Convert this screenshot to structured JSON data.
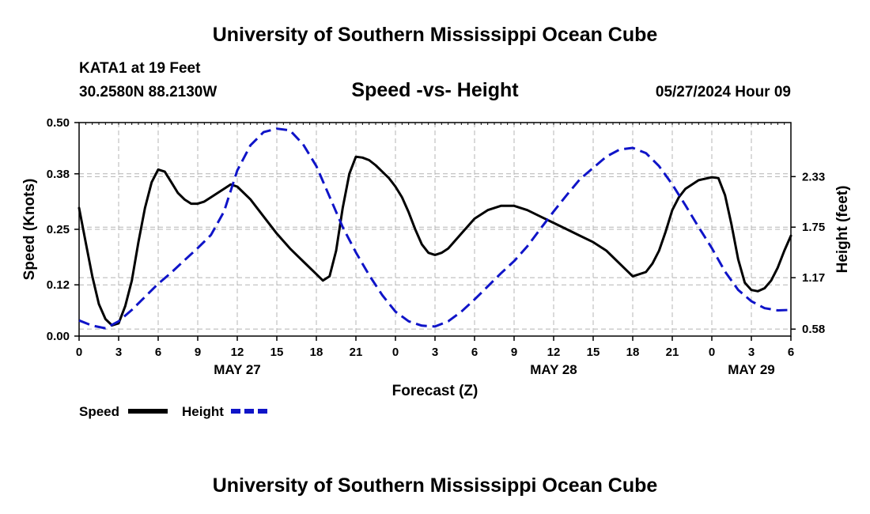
{
  "header": {
    "title": "University of Southern Mississippi Ocean Cube",
    "station": "KATA1 at 19 Feet",
    "coordinates": "30.2580N  88.2130W",
    "chart_title": "Speed -vs- Height",
    "forecast_time": "05/27/2024 Hour 09"
  },
  "footer": {
    "title": "University of Southern Mississippi Ocean Cube"
  },
  "chart_data": {
    "type": "line",
    "title": "Speed -vs- Height",
    "xlabel": "Forecast (Z)",
    "ylabel": "Speed (Knots)",
    "y2label": "Height (feet)",
    "xlim": [
      0,
      54
    ],
    "ylim": [
      0,
      0.5
    ],
    "y2lim": [
      0.5,
      2.95
    ],
    "x_ticks": [
      0,
      3,
      6,
      9,
      12,
      15,
      18,
      21,
      24,
      27,
      30,
      33,
      36,
      39,
      42,
      45,
      48,
      51,
      54
    ],
    "x_tick_labels": [
      "0",
      "3",
      "6",
      "9",
      "12",
      "15",
      "18",
      "21",
      "0",
      "3",
      "6",
      "9",
      "12",
      "15",
      "18",
      "21",
      "0",
      "3",
      "6"
    ],
    "date_labels": [
      {
        "x": 12,
        "label": "MAY 27"
      },
      {
        "x": 36,
        "label": "MAY 28"
      },
      {
        "x": 51,
        "label": "MAY 29"
      }
    ],
    "y_ticks": [
      0.0,
      0.12,
      0.25,
      0.38,
      0.5
    ],
    "y_tick_labels": [
      "0.00",
      "0.12",
      "0.25",
      "0.38",
      "0.50"
    ],
    "y2_ticks": [
      0.58,
      1.17,
      1.75,
      2.33
    ],
    "y2_tick_labels": [
      "0.58",
      "1.17",
      "1.75",
      "2.33"
    ],
    "grid": true,
    "legend_position": "bottom-left",
    "series": [
      {
        "name": "Speed",
        "axis": "left",
        "color": "#000000",
        "style": "solid",
        "x": [
          0,
          0.5,
          1,
          1.5,
          2,
          2.5,
          3,
          3.5,
          4,
          4.5,
          5,
          5.5,
          6,
          6.5,
          7,
          7.5,
          8,
          8.5,
          9,
          9.5,
          10,
          10.5,
          11,
          11.5,
          12,
          13,
          14,
          15,
          16,
          17,
          18,
          18.5,
          19,
          19.5,
          20,
          20.5,
          21,
          21.5,
          22,
          22.5,
          23,
          23.5,
          24,
          24.5,
          25,
          25.5,
          26,
          26.5,
          27,
          27.5,
          28,
          29,
          30,
          31,
          32,
          33,
          34,
          35,
          36,
          37,
          38,
          39,
          40,
          41,
          42,
          43,
          43.5,
          44,
          44.5,
          45,
          45.5,
          46,
          47,
          48,
          48.5,
          49,
          49.5,
          50,
          50.5,
          51,
          51.5,
          52,
          52.5,
          53,
          53.5,
          54
        ],
        "values": [
          0.3,
          0.22,
          0.14,
          0.075,
          0.04,
          0.025,
          0.03,
          0.07,
          0.13,
          0.22,
          0.3,
          0.36,
          0.39,
          0.385,
          0.36,
          0.335,
          0.32,
          0.31,
          0.31,
          0.315,
          0.325,
          0.335,
          0.345,
          0.355,
          0.35,
          0.32,
          0.28,
          0.24,
          0.205,
          0.175,
          0.145,
          0.13,
          0.14,
          0.2,
          0.3,
          0.38,
          0.42,
          0.418,
          0.412,
          0.4,
          0.385,
          0.37,
          0.35,
          0.325,
          0.29,
          0.25,
          0.215,
          0.195,
          0.19,
          0.195,
          0.205,
          0.24,
          0.275,
          0.295,
          0.305,
          0.305,
          0.295,
          0.28,
          0.265,
          0.25,
          0.235,
          0.22,
          0.2,
          0.17,
          0.14,
          0.15,
          0.17,
          0.2,
          0.245,
          0.295,
          0.325,
          0.345,
          0.365,
          0.372,
          0.37,
          0.33,
          0.26,
          0.18,
          0.125,
          0.108,
          0.105,
          0.112,
          0.13,
          0.16,
          0.2,
          0.235
        ],
        "line_width": 3
      },
      {
        "name": "Height",
        "axis": "right",
        "color": "#0f14c8",
        "style": "dashed",
        "x": [
          0,
          1,
          2,
          3,
          4,
          5,
          6,
          7,
          8,
          9,
          10,
          11,
          12,
          13,
          14,
          15,
          16,
          17,
          18,
          19,
          20,
          21,
          22,
          23,
          24,
          25,
          26,
          27,
          28,
          29,
          30,
          31,
          32,
          33,
          34,
          35,
          36,
          37,
          38,
          39,
          40,
          41,
          42,
          43,
          44,
          45,
          46,
          47,
          48,
          49,
          50,
          51,
          52,
          53,
          54
        ],
        "values": [
          0.68,
          0.62,
          0.59,
          0.67,
          0.8,
          0.95,
          1.1,
          1.23,
          1.37,
          1.51,
          1.66,
          1.93,
          2.4,
          2.69,
          2.84,
          2.88,
          2.86,
          2.7,
          2.45,
          2.1,
          1.75,
          1.46,
          1.2,
          0.97,
          0.78,
          0.67,
          0.62,
          0.61,
          0.67,
          0.78,
          0.92,
          1.07,
          1.22,
          1.36,
          1.53,
          1.73,
          1.93,
          2.12,
          2.3,
          2.43,
          2.56,
          2.64,
          2.66,
          2.6,
          2.45,
          2.24,
          2.0,
          1.75,
          1.51,
          1.24,
          1.03,
          0.9,
          0.82,
          0.795,
          0.8
        ]
      }
    ]
  }
}
